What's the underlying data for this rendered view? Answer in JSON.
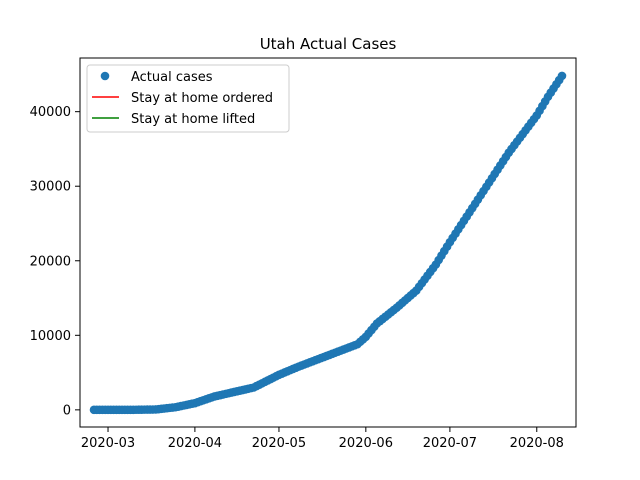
{
  "chart_data": {
    "type": "scatter",
    "title": "Utah Actual Cases",
    "xlabel": "",
    "ylabel": "",
    "x_axis": "date",
    "xlim": [
      "2020-02-20",
      "2020-08-15"
    ],
    "ylim": [
      -2300,
      47200
    ],
    "x_ticks": [
      "2020-03-01",
      "2020-04-01",
      "2020-05-01",
      "2020-06-01",
      "2020-07-01",
      "2020-08-01"
    ],
    "x_tick_labels": [
      "2020-03",
      "2020-04",
      "2020-05",
      "2020-06",
      "2020-07",
      "2020-08"
    ],
    "y_ticks": [
      0,
      10000,
      20000,
      30000,
      40000
    ],
    "y_tick_labels": [
      "0",
      "10000",
      "20000",
      "30000",
      "40000"
    ],
    "grid": false,
    "legend_position": "upper-left",
    "legend": [
      {
        "label": "Actual cases",
        "marker": "circle",
        "color": "#1f77b4"
      },
      {
        "label": "Stay at home ordered",
        "marker": "line",
        "color": "#ff0000"
      },
      {
        "label": "Stay at home lifted",
        "marker": "line",
        "color": "#008000"
      }
    ],
    "series": [
      {
        "name": "Actual cases",
        "color": "#1f77b4",
        "anchors": [
          [
            "2020-02-25",
            0
          ],
          [
            "2020-03-10",
            10
          ],
          [
            "2020-03-18",
            50
          ],
          [
            "2020-03-25",
            350
          ],
          [
            "2020-04-01",
            900
          ],
          [
            "2020-04-08",
            1800
          ],
          [
            "2020-04-15",
            2400
          ],
          [
            "2020-04-22",
            3000
          ],
          [
            "2020-05-01",
            4700
          ],
          [
            "2020-05-08",
            5800
          ],
          [
            "2020-05-15",
            6800
          ],
          [
            "2020-05-22",
            7800
          ],
          [
            "2020-05-29",
            8800
          ],
          [
            "2020-06-01",
            9800
          ],
          [
            "2020-06-05",
            11600
          ],
          [
            "2020-06-12",
            13700
          ],
          [
            "2020-06-19",
            16000
          ],
          [
            "2020-06-26",
            19500
          ],
          [
            "2020-07-01",
            22500
          ],
          [
            "2020-07-08",
            26500
          ],
          [
            "2020-07-15",
            30500
          ],
          [
            "2020-07-22",
            34500
          ],
          [
            "2020-07-29",
            38000
          ],
          [
            "2020-08-01",
            39500
          ],
          [
            "2020-08-05",
            42000
          ],
          [
            "2020-08-10",
            44800
          ]
        ]
      }
    ]
  }
}
